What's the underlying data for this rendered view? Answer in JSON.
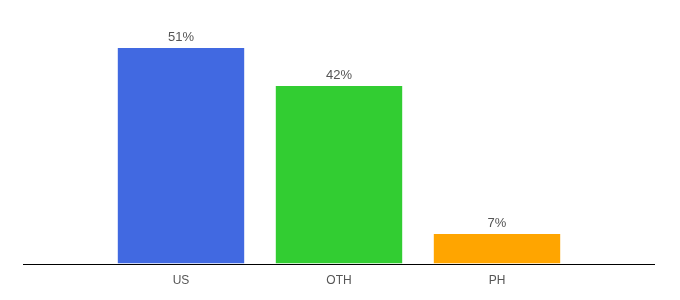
{
  "chart_data": {
    "type": "bar",
    "categories": [
      "US",
      "OTH",
      "PH"
    ],
    "values": [
      51,
      42,
      7
    ],
    "value_labels": [
      "51%",
      "42%",
      "7%"
    ],
    "colors": [
      "#4169e1",
      "#32cd32",
      "#ffa500"
    ],
    "ylim": [
      0,
      51
    ],
    "data_labels": true,
    "tick_labels": "x",
    "grid": false
  }
}
